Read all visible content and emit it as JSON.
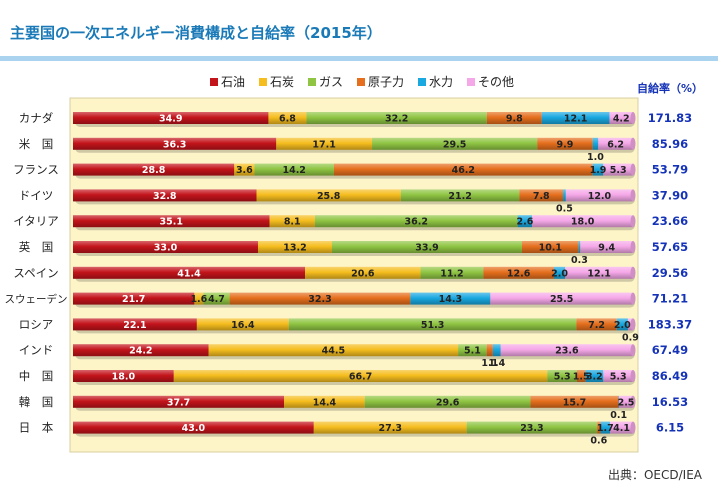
{
  "title": "主要国の一次エネルギー消費構成と自給率（2015年）",
  "source": "出典：OECD/IEA",
  "colors": {
    "plot_bg": "#fdf4c8",
    "title": "#1a7ab8",
    "self_sufficiency": "#1533b8",
    "title_rule": "#a9d3ee"
  },
  "chart_data": {
    "type": "bar",
    "orientation": "horizontal",
    "stacked": true,
    "percent": true,
    "xlim": [
      0,
      100
    ],
    "legend_position": "top",
    "categories": [
      "カナダ",
      "米　国",
      "フランス",
      "ドイツ",
      "イタリア",
      "英　国",
      "スペイン",
      "スウェーデン",
      "ロシア",
      "インド",
      "中　国",
      "韓　国",
      "日　本"
    ],
    "series": [
      {
        "name": "石油",
        "color": "#c3141b",
        "values": [
          34.9,
          36.3,
          28.8,
          32.8,
          35.1,
          33.0,
          41.4,
          21.7,
          22.1,
          24.2,
          18.0,
          37.7,
          43.0
        ],
        "labels": [
          "34.9",
          "36.3",
          "28.8",
          "32.8",
          "35.1",
          "33.0",
          "41.4",
          "21.7",
          "22.1",
          "24.2",
          "18.0",
          "37.7",
          "43.0"
        ]
      },
      {
        "name": "石炭",
        "color": "#f5bd1e",
        "values": [
          6.8,
          17.1,
          3.6,
          25.8,
          8.1,
          13.2,
          20.6,
          1.6,
          16.4,
          44.5,
          66.7,
          14.4,
          27.3
        ],
        "labels": [
          "6.8",
          "17.1",
          "3.6",
          "25.8",
          "8.1",
          "13.2",
          "20.6",
          "1.6",
          "16.4",
          "44.5",
          "66.7",
          "14.4",
          "27.3"
        ]
      },
      {
        "name": "ガス",
        "color": "#8fc543",
        "values": [
          32.2,
          29.5,
          14.2,
          21.2,
          36.2,
          33.9,
          11.2,
          4.7,
          51.3,
          5.1,
          5.3,
          29.6,
          23.3
        ],
        "labels": [
          "32.2",
          "29.5",
          "14.2",
          "21.2",
          "36.2",
          "33.9",
          "11.2",
          "4.7",
          "51.3",
          "5.1",
          "5.3",
          "29.6",
          "23.3"
        ]
      },
      {
        "name": "原子力",
        "color": "#e56f1d",
        "values": [
          9.8,
          9.9,
          46.2,
          7.8,
          0,
          10.1,
          12.6,
          32.3,
          7.2,
          1.1,
          1.5,
          15.7,
          0.6
        ],
        "labels": [
          "9.8",
          "9.9",
          "46.2",
          "7.8",
          "",
          "10.1",
          "12.6",
          "32.3",
          "7.2",
          "1.1",
          "1.5",
          "15.7",
          "0.6"
        ]
      },
      {
        "name": "水力",
        "color": "#19a8e0",
        "values": [
          12.1,
          1.0,
          1.9,
          0.5,
          2.6,
          0.3,
          2.0,
          14.3,
          2.0,
          1.4,
          3.2,
          0.1,
          1.7
        ],
        "labels": [
          "12.1",
          "1.0",
          "1.9",
          "0.5",
          "2.6",
          "0.3",
          "2.0",
          "14.3",
          "2.0",
          "1.4",
          "3.2",
          "0.1",
          "1.7"
        ]
      },
      {
        "name": "その他",
        "color": "#f5a8e8",
        "values": [
          4.2,
          6.2,
          5.3,
          12.0,
          18.0,
          9.4,
          12.1,
          25.5,
          0.9,
          23.6,
          5.3,
          2.5,
          4.1
        ],
        "labels": [
          "4.2",
          "6.2",
          "5.3",
          "12.0",
          "18.0",
          "9.4",
          "12.1",
          "25.5",
          "0.9",
          "23.6",
          "5.3",
          "2.5",
          "4.1"
        ]
      }
    ],
    "self_sufficiency": {
      "label": "自給率（%）",
      "values": [
        "171.83",
        "85.96",
        "53.79",
        "37.90",
        "23.66",
        "57.65",
        "29.56",
        "71.21",
        "183.37",
        "67.49",
        "86.49",
        "16.53",
        "6.15"
      ]
    }
  }
}
